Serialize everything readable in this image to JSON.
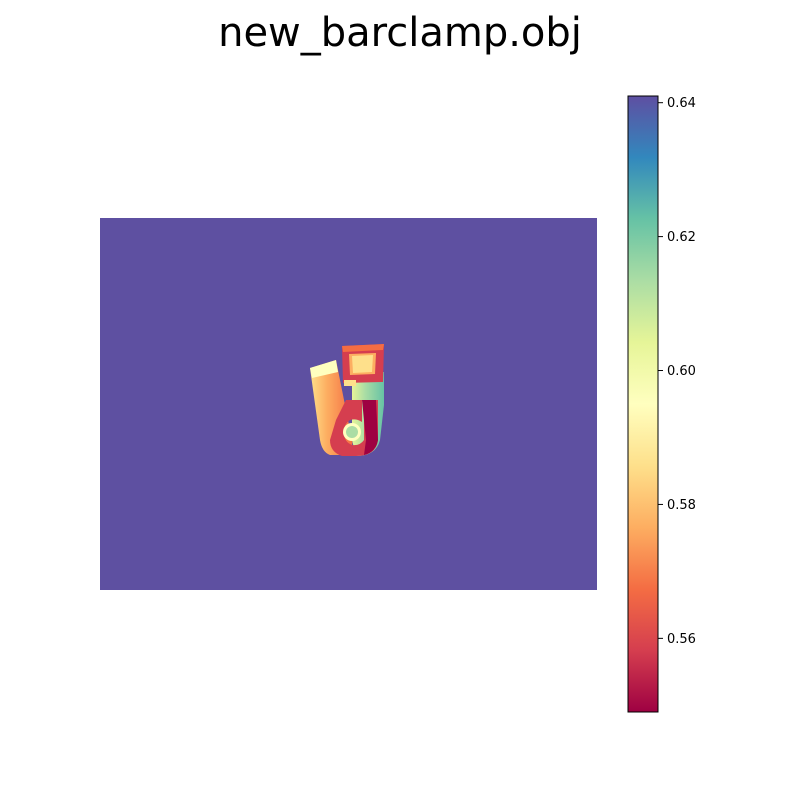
{
  "chart_data": {
    "type": "heatmap",
    "title": "new_barclamp.obj",
    "description_kind": "depth image with colorbar",
    "colormap": "Spectral",
    "background_value": 0.641,
    "colorbar": {
      "min": 0.549,
      "max": 0.641,
      "ticks": [
        0.56,
        0.58,
        0.6,
        0.62,
        0.64
      ],
      "tick_labels": [
        "0.56",
        "0.58",
        "0.60",
        "0.62",
        "0.64"
      ]
    },
    "axes_visible": false,
    "colors": {
      "background_field": "#5e50a1",
      "spectral": [
        "#9e0142",
        "#d53e4f",
        "#f46d43",
        "#fdae61",
        "#fee08b",
        "#ffffbf",
        "#e6f598",
        "#abdda4",
        "#66c2a5",
        "#3288bd",
        "#5e4fa2"
      ]
    }
  }
}
